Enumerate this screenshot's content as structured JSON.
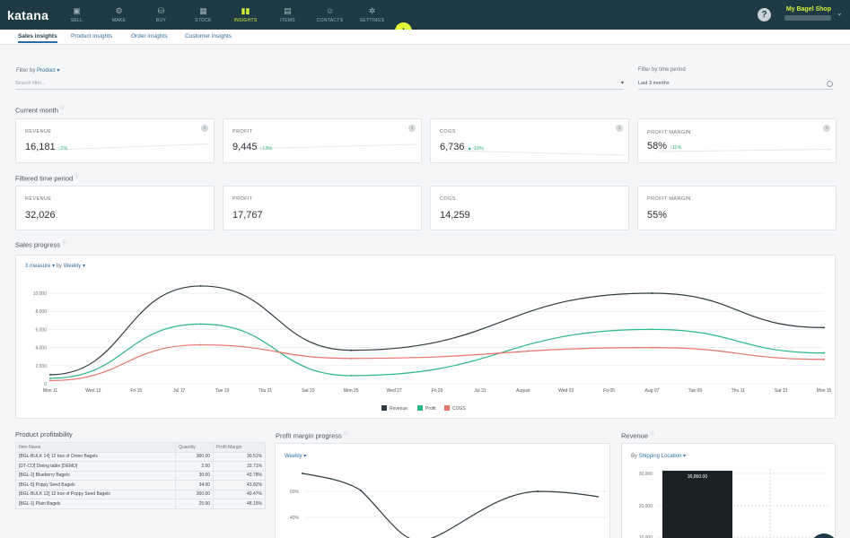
{
  "brand": "katana",
  "nav": [
    {
      "label": "SELL",
      "icon": "sell-icon",
      "glyph": "▣"
    },
    {
      "label": "MAKE",
      "icon": "make-icon",
      "glyph": "⚙"
    },
    {
      "label": "BUY",
      "icon": "buy-icon",
      "glyph": "⛁"
    },
    {
      "label": "STOCK",
      "icon": "stock-icon",
      "glyph": "▦"
    },
    {
      "label": "INSIGHTS",
      "icon": "insights-icon",
      "glyph": "▮▮"
    },
    {
      "label": "ITEMS",
      "icon": "items-icon",
      "glyph": "▤"
    },
    {
      "label": "CONTACTS",
      "icon": "contacts-icon",
      "glyph": "☺"
    },
    {
      "label": "SETTINGS",
      "icon": "settings-icon",
      "glyph": "✲"
    }
  ],
  "header": {
    "shop_name": "My Bagel Shop",
    "help": "?",
    "plus": "+",
    "chevron": "⌄"
  },
  "subtabs": [
    "Sales insights",
    "Product insights",
    "Order insights",
    "Customer insights"
  ],
  "filters": {
    "filter_by_label": "Filter by",
    "filter_by_value": "Product ▾",
    "search_placeholder": "Search filter...",
    "dropdown_caret": "▾",
    "time_label": "Filter by time period",
    "time_value": "Last 3 months"
  },
  "current_month": {
    "title": "Current month",
    "info": "i",
    "cards": [
      {
        "label": "REVENUE",
        "value": "16,181",
        "change": "↑2%"
      },
      {
        "label": "PROFIT",
        "value": "9,445",
        "change": "↑13%"
      },
      {
        "label": "COGS",
        "value": "6,736",
        "change": "▲-10%"
      },
      {
        "label": "PROFIT MARGIN",
        "value": "58%",
        "change": "↑11%"
      }
    ]
  },
  "filtered_period": {
    "title": "Filtered time period",
    "cards": [
      {
        "label": "REVENUE",
        "value": "32,026"
      },
      {
        "label": "PROFIT",
        "value": "17,767"
      },
      {
        "label": "COGS",
        "value": "14,259"
      },
      {
        "label": "PROFIT MARGIN",
        "value": "55%"
      }
    ]
  },
  "sales_progress": {
    "title": "Sales progress",
    "measure": "3 measure ▾",
    "by": "by",
    "interval": "Weekly ▾",
    "legend": [
      "Revenue",
      "Profit",
      "COGS"
    ]
  },
  "chart_data": {
    "type": "line",
    "x_labels": [
      "Mon 11",
      "Wed 13",
      "Fri 15",
      "Jul 17",
      "Tue 19",
      "Thu 21",
      "Sat 23",
      "Mon 25",
      "Wed 27",
      "Fri 29",
      "Jul 31",
      "August",
      "Wed 03",
      "Fri 05",
      "Aug 07",
      "Tue 09",
      "Thu 11",
      "Sat 13",
      "Mon 15"
    ],
    "y_ticks": [
      "0",
      "2,000",
      "4,000",
      "6,000",
      "8,000",
      "10,000"
    ],
    "ylim": [
      0,
      10000
    ],
    "series": [
      {
        "name": "Revenue",
        "color": "#2e3a40",
        "points": [
          [
            0,
            1000
          ],
          [
            3.5,
            10800
          ],
          [
            7,
            3700
          ],
          [
            14,
            10000
          ],
          [
            18,
            6200
          ]
        ]
      },
      {
        "name": "Profit",
        "color": "#2bb68a",
        "points": [
          [
            0,
            600
          ],
          [
            3.5,
            6600
          ],
          [
            7,
            900
          ],
          [
            14,
            6000
          ],
          [
            18,
            3400
          ]
        ]
      },
      {
        "name": "COGS",
        "color": "#e8736a",
        "points": [
          [
            0,
            350
          ],
          [
            3.5,
            4300
          ],
          [
            7,
            2800
          ],
          [
            14,
            4000
          ],
          [
            18,
            2700
          ]
        ]
      }
    ]
  },
  "product_profitability": {
    "title": "Product profitability",
    "columns": [
      "Item Name",
      "Quantity",
      "Profit Margin"
    ],
    "rows": [
      [
        "[BGL-BULK 14] 12 box of Onion Bagels",
        "300.00",
        "30.51%"
      ],
      [
        "[DT-CO] Dining table [DEMO]",
        "2.00",
        "33.71%"
      ],
      [
        "[BGL-2] Blueberry Bagels",
        "30.00",
        "43.78%"
      ],
      [
        "[BGL-5] Poppy Seed Bagels",
        "34.00",
        "43.82%"
      ],
      [
        "[BGL-BULK 12] 12 box of Poppy Seed Bagels",
        "300.00",
        "40.47%"
      ],
      [
        "[BGL-1] Plain Bagels",
        "25.00",
        "48.15%"
      ]
    ]
  },
  "profit_margin_progress": {
    "title": "Profit margin progress",
    "interval": "Weekly ▾",
    "y_ticks": [
      "60%",
      "40%"
    ]
  },
  "revenue_panel": {
    "title": "Revenue",
    "by": "By",
    "group": "Shipping Location ▾",
    "y_ticks": [
      "30,000",
      "20,000",
      "10,000"
    ],
    "bar_label": "30,860.00",
    "bar_value": 30860
  }
}
